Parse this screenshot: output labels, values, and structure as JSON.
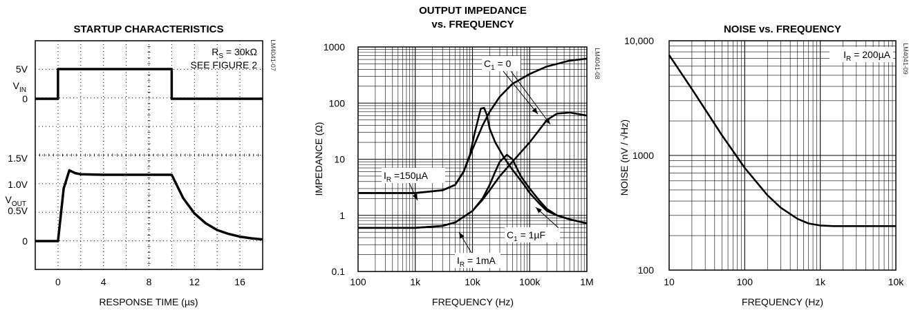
{
  "chart_data": [
    {
      "id": "startup",
      "type": "line",
      "title": "STARTUP CHARACTERISTICS",
      "xlabel": "RESPONSE TIME (µs)",
      "code": "LM4041-07",
      "xlim": [
        -2,
        18
      ],
      "x_ticks": [
        0,
        4,
        8,
        12,
        16
      ],
      "left_labels": [
        {
          "text": "5V",
          "y": 100
        },
        {
          "text": "0",
          "y": 143
        },
        {
          "text": "1.5V",
          "y": 229
        },
        {
          "text": "1.0V",
          "y": 267
        },
        {
          "text": "0.5V",
          "y": 305
        },
        {
          "text": "0",
          "y": 349
        }
      ],
      "series_labels": [
        {
          "main": "V",
          "sub": "IN",
          "y": 124
        },
        {
          "main": "V",
          "sub": "OUT",
          "y": 289
        }
      ],
      "annotations": [
        {
          "main": "R",
          "sub": "S",
          "rest": " = 30kΩ"
        },
        {
          "main": "SEE FIGURE 2",
          "sub": "",
          "rest": ""
        }
      ],
      "series": [
        {
          "name": "V_IN",
          "x": [
            -2,
            0,
            0,
            10,
            10,
            18
          ],
          "y": [
            0,
            0,
            5,
            5,
            0,
            0
          ]
        },
        {
          "name": "V_OUT",
          "x": [
            -2,
            0,
            0.5,
            1.0,
            1.5,
            2,
            4,
            6,
            8,
            10,
            11,
            12,
            13,
            14,
            15,
            16,
            17,
            18
          ],
          "y": [
            0,
            0,
            0.95,
            1.28,
            1.23,
            1.21,
            1.2,
            1.2,
            1.2,
            1.2,
            0.78,
            0.5,
            0.32,
            0.2,
            0.13,
            0.08,
            0.05,
            0.03
          ]
        }
      ]
    },
    {
      "id": "impedance",
      "type": "line",
      "title": "OUTPUT IMPEDANCE",
      "title2": "vs. FREQUENCY",
      "xlabel": "FREQUENCY (Hz)",
      "ylabel": "IMPEDANCE (Ω)",
      "code": "LM4041-08",
      "xscale": "log",
      "yscale": "log",
      "xlim": [
        100,
        1000000
      ],
      "ylim": [
        0.1,
        1000
      ],
      "x_ticks": [
        "100",
        "1k",
        "10k",
        "100k",
        "1M"
      ],
      "y_ticks": [
        "0.1",
        "1",
        "10",
        "100",
        "1000"
      ],
      "labels": [
        {
          "main": "I",
          "sub": "R",
          "rest": " =150µA"
        },
        {
          "main": "C",
          "sub": "1",
          "rest": " = 0"
        },
        {
          "main": "C",
          "sub": "1",
          "rest": " = 1µF"
        },
        {
          "main": "I",
          "sub": "R",
          "rest": " = 1mA"
        }
      ],
      "series": [
        {
          "name": "IR=150uA, C1=0",
          "x": [
            100,
            1000,
            3000,
            5000,
            7000,
            10000,
            15000,
            20000,
            30000,
            50000,
            100000,
            200000,
            500000,
            1000000
          ],
          "y": [
            2.5,
            2.5,
            2.8,
            3.5,
            6,
            15,
            40,
            70,
            130,
            220,
            330,
            450,
            570,
            620
          ]
        },
        {
          "name": "IR=150uA, C1=1uF",
          "x": [
            100,
            1000,
            3000,
            5000,
            7000,
            9000,
            11000,
            14000,
            16000,
            18000,
            20000,
            25000,
            35000,
            50000,
            80000,
            100000,
            150000,
            200000,
            300000,
            500000,
            1000000
          ],
          "y": [
            2.5,
            2.5,
            2.8,
            3.5,
            6,
            12,
            30,
            80,
            82,
            60,
            35,
            20,
            11,
            6.5,
            3.5,
            2.5,
            1.6,
            1.2,
            1.0,
            0.85,
            0.72
          ]
        },
        {
          "name": "IR=1mA, C1=0",
          "x": [
            100,
            1000,
            3000,
            5000,
            10000,
            15000,
            20000,
            30000,
            50000,
            100000,
            200000,
            300000,
            500000,
            1000000
          ],
          "y": [
            0.6,
            0.6,
            0.65,
            0.75,
            1.2,
            1.9,
            2.8,
            5,
            9,
            20,
            50,
            65,
            68,
            60
          ]
        },
        {
          "name": "IR=1mA, C1=1uF",
          "x": [
            100,
            1000,
            3000,
            5000,
            10000,
            15000,
            20000,
            25000,
            30000,
            40000,
            50000,
            70000,
            100000,
            150000,
            200000,
            300000,
            500000,
            1000000
          ],
          "y": [
            0.6,
            0.6,
            0.65,
            0.75,
            1.2,
            2,
            3.5,
            6,
            9,
            12,
            10,
            5,
            3,
            1.8,
            1.3,
            1.0,
            0.85,
            0.72
          ]
        }
      ]
    },
    {
      "id": "noise",
      "type": "line",
      "title": "NOISE vs. FREQUENCY",
      "xlabel": "FREQUENCY (Hz)",
      "ylabel": "NOISE (nV / √Hz)",
      "code": "LM4041-09",
      "xscale": "log",
      "yscale": "log",
      "xlim": [
        10,
        10000
      ],
      "ylim": [
        100,
        10000
      ],
      "x_ticks": [
        "10",
        "100",
        "1k",
        "10k"
      ],
      "y_ticks": [
        "100",
        "1000",
        "10,000"
      ],
      "annotation": {
        "main": "I",
        "sub": "R",
        "rest": " = 200µA"
      },
      "series": [
        {
          "name": "IR=200uA",
          "x": [
            10,
            20,
            50,
            100,
            200,
            300,
            500,
            700,
            1000,
            1500,
            2000,
            5000,
            10000
          ],
          "y": [
            7500,
            3800,
            1500,
            780,
            450,
            350,
            280,
            255,
            245,
            242,
            242,
            242,
            242
          ]
        }
      ]
    }
  ]
}
